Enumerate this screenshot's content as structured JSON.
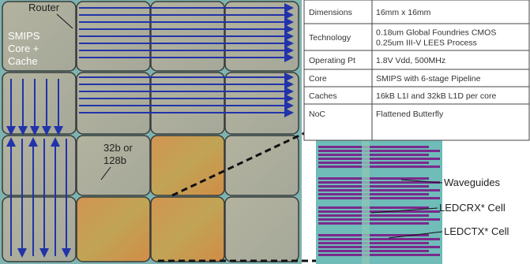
{
  "labels": {
    "router": "Router",
    "core": [
      "SMIPS",
      "Core +",
      "Cache"
    ],
    "link": [
      "32b or",
      "128b"
    ],
    "waveguides": "Waveguides",
    "rx": "LEDCRX* Cell",
    "tx": "LEDCTX* Cell"
  },
  "table": {
    "rows": [
      [
        "Dimensions",
        [
          "16mm x 16mm"
        ]
      ],
      [
        "Technology",
        [
          "0.18um Global Foundries CMOS",
          "0.25um III-V LEES Process"
        ]
      ],
      [
        "Operating Pt",
        [
          "1.8V Vdd, 500MHz"
        ]
      ],
      [
        "Core",
        [
          "SMIPS with 6-stage Pipeline"
        ]
      ],
      [
        "Caches",
        [
          "16kB L1I and 32kB L1D per core"
        ]
      ],
      [
        "NoC",
        [
          "Flattened Butterfly"
        ]
      ]
    ]
  }
}
